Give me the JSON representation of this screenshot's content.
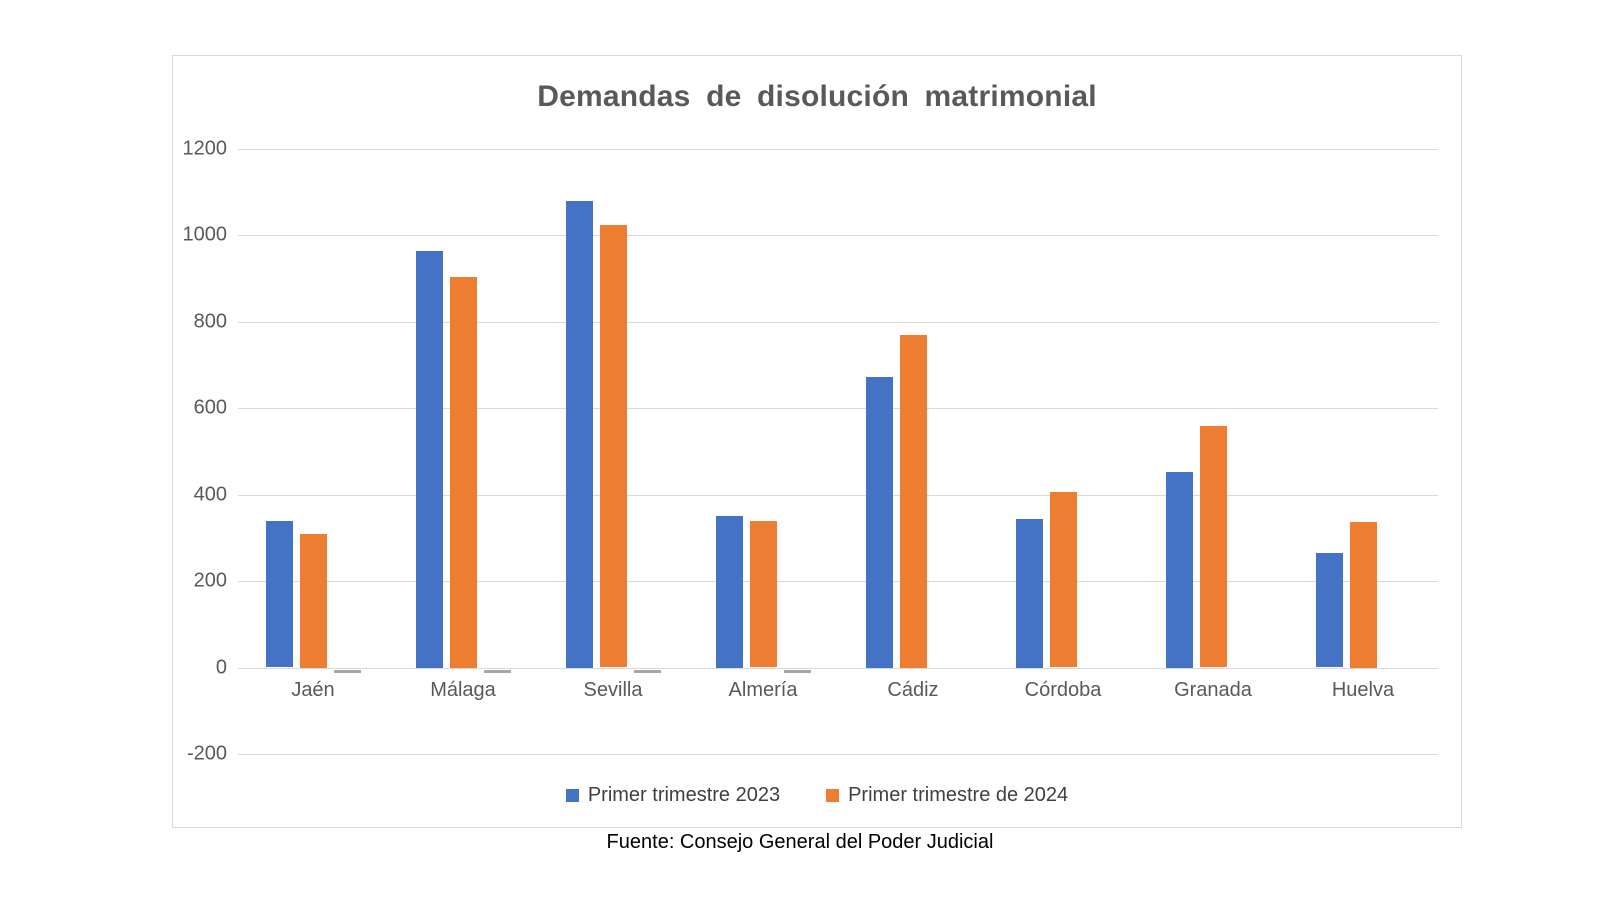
{
  "chart_data": {
    "type": "bar",
    "title": "Demandas de disolución matrimonial",
    "categories": [
      "Jaén",
      "Málaga",
      "Sevilla",
      "Almería",
      "Cádiz",
      "Córdoba",
      "Granada",
      "Huelva"
    ],
    "series": [
      {
        "name": "Primer trimestre 2023",
        "color": "#4472C4",
        "values": [
          340,
          965,
          1080,
          352,
          672,
          344,
          453,
          266
        ]
      },
      {
        "name": "Primer trimestre de 2024",
        "color": "#ED7D31",
        "values": [
          309,
          904,
          1025,
          340,
          769,
          406,
          558,
          336
        ]
      }
    ],
    "zero_markers": {
      "color": "#A6A6A6",
      "per_category": [
        true,
        true,
        true,
        true,
        false,
        false,
        false,
        false
      ]
    },
    "y_axis": {
      "min": -200,
      "max": 1200,
      "tick_step": 200,
      "ticks": [
        1200,
        1000,
        800,
        600,
        400,
        200,
        0,
        -200
      ]
    },
    "grid": true,
    "gridline_color": "#D9D9D9",
    "axis_text_color": "#595959",
    "title_color": "#595959",
    "legend_text_color": "#404040",
    "legend_position": "bottom",
    "xlabel": "",
    "ylabel": ""
  },
  "footer": {
    "source": "Fuente: Consejo General del Poder Judicial"
  }
}
